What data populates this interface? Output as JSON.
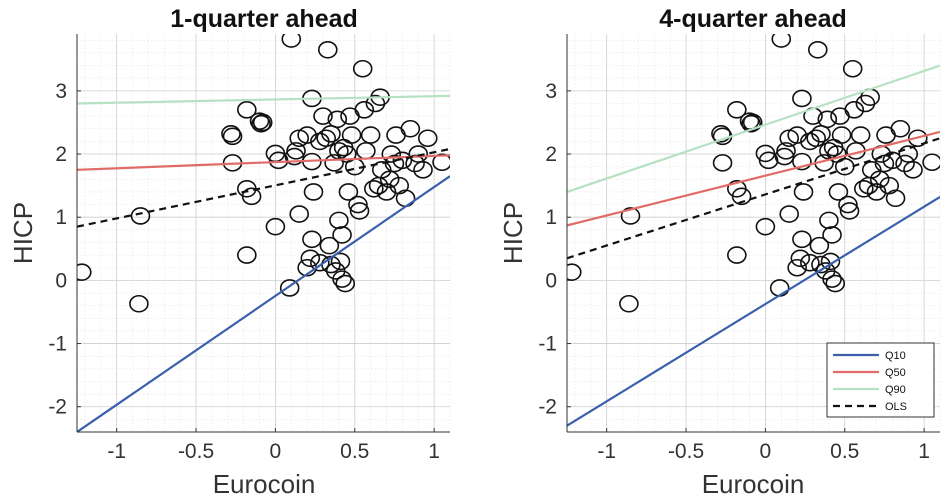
{
  "chart_data": [
    {
      "type": "scatter",
      "title": "1-quarter ahead",
      "xlabel": "Eurocoin",
      "ylabel": "HICP",
      "xlim": [
        -1.25,
        1.1
      ],
      "ylim": [
        -2.4,
        3.9
      ],
      "xticks": [
        -1,
        -0.5,
        0,
        0.5,
        1
      ],
      "xtick_labels": [
        "-1",
        "-0.5",
        "0",
        "0.5",
        "1"
      ],
      "yticks": [
        -2,
        -1,
        0,
        1,
        2,
        3
      ],
      "ytick_labels": [
        "-2",
        "-1",
        "0",
        "1",
        "2",
        "3"
      ],
      "grid": true,
      "legend": null,
      "points": [
        [
          -1.22,
          0.13
        ],
        [
          -0.85,
          1.02
        ],
        [
          -0.86,
          -0.37
        ],
        [
          -0.28,
          2.32
        ],
        [
          -0.27,
          2.28
        ],
        [
          -0.27,
          1.86
        ],
        [
          -0.18,
          2.7
        ],
        [
          -0.18,
          1.45
        ],
        [
          -0.18,
          0.4
        ],
        [
          -0.15,
          1.33
        ],
        [
          -0.1,
          2.52
        ],
        [
          -0.09,
          2.48
        ],
        [
          -0.08,
          2.5
        ],
        [
          0.0,
          2.01
        ],
        [
          0.0,
          0.85
        ],
        [
          0.02,
          1.9
        ],
        [
          0.09,
          -0.12
        ],
        [
          0.1,
          3.82
        ],
        [
          0.12,
          1.96
        ],
        [
          0.13,
          2.05
        ],
        [
          0.15,
          2.25
        ],
        [
          0.15,
          1.05
        ],
        [
          0.2,
          2.3
        ],
        [
          0.2,
          0.2
        ],
        [
          0.22,
          0.35
        ],
        [
          0.23,
          2.88
        ],
        [
          0.23,
          1.88
        ],
        [
          0.23,
          0.65
        ],
        [
          0.24,
          1.4
        ],
        [
          0.28,
          0.28
        ],
        [
          0.28,
          2.2
        ],
        [
          0.3,
          2.6
        ],
        [
          0.32,
          2.25
        ],
        [
          0.33,
          3.65
        ],
        [
          0.34,
          0.55
        ],
        [
          0.35,
          2.32
        ],
        [
          0.35,
          0.25
        ],
        [
          0.37,
          1.86
        ],
        [
          0.38,
          0.15
        ],
        [
          0.39,
          2.55
        ],
        [
          0.4,
          2.05
        ],
        [
          0.4,
          0.95
        ],
        [
          0.41,
          0.3
        ],
        [
          0.42,
          0.02
        ],
        [
          0.42,
          0.72
        ],
        [
          0.43,
          2.1
        ],
        [
          0.44,
          -0.05
        ],
        [
          0.45,
          2.0
        ],
        [
          0.46,
          1.4
        ],
        [
          0.47,
          2.6
        ],
        [
          0.48,
          2.3
        ],
        [
          0.5,
          1.8
        ],
        [
          0.52,
          1.2
        ],
        [
          0.53,
          1.1
        ],
        [
          0.55,
          3.35
        ],
        [
          0.56,
          2.7
        ],
        [
          0.57,
          2.05
        ],
        [
          0.6,
          2.3
        ],
        [
          0.62,
          1.45
        ],
        [
          0.63,
          2.8
        ],
        [
          0.65,
          1.5
        ],
        [
          0.66,
          2.9
        ],
        [
          0.67,
          1.75
        ],
        [
          0.7,
          1.4
        ],
        [
          0.72,
          1.6
        ],
        [
          0.73,
          2.0
        ],
        [
          0.75,
          1.85
        ],
        [
          0.76,
          2.3
        ],
        [
          0.78,
          1.5
        ],
        [
          0.8,
          1.9
        ],
        [
          0.82,
          1.3
        ],
        [
          0.85,
          2.4
        ],
        [
          0.88,
          1.85
        ],
        [
          0.9,
          2.0
        ],
        [
          0.93,
          1.75
        ],
        [
          0.96,
          2.25
        ],
        [
          1.05,
          1.87
        ]
      ],
      "lines": [
        {
          "name": "Q10",
          "color": "#3a5fac",
          "dash": false,
          "x": [
            -1.25,
            1.1
          ],
          "y": [
            -2.4,
            1.65
          ]
        },
        {
          "name": "Q50",
          "color": "#e06b68",
          "dash": false,
          "x": [
            -1.25,
            1.1
          ],
          "y": [
            1.75,
            1.98
          ]
        },
        {
          "name": "Q90",
          "color": "#b6e2c3",
          "dash": false,
          "x": [
            -1.25,
            1.1
          ],
          "y": [
            2.8,
            2.92
          ]
        },
        {
          "name": "OLS",
          "color": "#111111",
          "dash": true,
          "x": [
            -1.25,
            1.1
          ],
          "y": [
            0.85,
            2.08
          ]
        }
      ]
    },
    {
      "type": "scatter",
      "title": "4-quarter ahead",
      "xlabel": "Eurocoin",
      "ylabel": "HICP",
      "xlim": [
        -1.25,
        1.1
      ],
      "ylim": [
        -2.4,
        3.9
      ],
      "xticks": [
        -1,
        -0.5,
        0,
        0.5,
        1
      ],
      "xtick_labels": [
        "-1",
        "-0.5",
        "0",
        "0.5",
        "1"
      ],
      "yticks": [
        -2,
        -1,
        0,
        1,
        2,
        3
      ],
      "ytick_labels": [
        "-2",
        "-1",
        "0",
        "1",
        "2",
        "3"
      ],
      "grid": true,
      "legend": {
        "position": "bottom-right",
        "entries": [
          {
            "label": "Q10",
            "color": "#3a5fac",
            "dash": false
          },
          {
            "label": "Q50",
            "color": "#e06b68",
            "dash": false
          },
          {
            "label": "Q90",
            "color": "#b6e2c3",
            "dash": false
          },
          {
            "label": "OLS",
            "color": "#111111",
            "dash": true
          }
        ]
      },
      "points": [
        [
          -1.22,
          0.13
        ],
        [
          -0.85,
          1.02
        ],
        [
          -0.86,
          -0.37
        ],
        [
          -0.28,
          2.32
        ],
        [
          -0.27,
          2.28
        ],
        [
          -0.27,
          1.86
        ],
        [
          -0.18,
          2.7
        ],
        [
          -0.18,
          1.45
        ],
        [
          -0.18,
          0.4
        ],
        [
          -0.15,
          1.33
        ],
        [
          -0.1,
          2.52
        ],
        [
          -0.09,
          2.48
        ],
        [
          -0.08,
          2.5
        ],
        [
          0.0,
          2.01
        ],
        [
          0.0,
          0.85
        ],
        [
          0.02,
          1.9
        ],
        [
          0.09,
          -0.12
        ],
        [
          0.1,
          3.82
        ],
        [
          0.12,
          1.96
        ],
        [
          0.13,
          2.05
        ],
        [
          0.15,
          2.25
        ],
        [
          0.15,
          1.05
        ],
        [
          0.2,
          2.3
        ],
        [
          0.2,
          0.2
        ],
        [
          0.22,
          0.35
        ],
        [
          0.23,
          2.88
        ],
        [
          0.23,
          1.88
        ],
        [
          0.23,
          0.65
        ],
        [
          0.24,
          1.4
        ],
        [
          0.28,
          0.28
        ],
        [
          0.28,
          2.2
        ],
        [
          0.3,
          2.6
        ],
        [
          0.32,
          2.25
        ],
        [
          0.33,
          3.65
        ],
        [
          0.34,
          0.55
        ],
        [
          0.35,
          2.32
        ],
        [
          0.35,
          0.25
        ],
        [
          0.37,
          1.86
        ],
        [
          0.38,
          0.15
        ],
        [
          0.39,
          2.55
        ],
        [
          0.4,
          2.05
        ],
        [
          0.4,
          0.95
        ],
        [
          0.41,
          0.3
        ],
        [
          0.42,
          0.02
        ],
        [
          0.42,
          0.72
        ],
        [
          0.43,
          2.1
        ],
        [
          0.44,
          -0.05
        ],
        [
          0.45,
          2.0
        ],
        [
          0.46,
          1.4
        ],
        [
          0.47,
          2.6
        ],
        [
          0.48,
          2.3
        ],
        [
          0.5,
          1.8
        ],
        [
          0.52,
          1.2
        ],
        [
          0.53,
          1.1
        ],
        [
          0.55,
          3.35
        ],
        [
          0.56,
          2.7
        ],
        [
          0.57,
          2.05
        ],
        [
          0.6,
          2.3
        ],
        [
          0.62,
          1.45
        ],
        [
          0.63,
          2.8
        ],
        [
          0.65,
          1.5
        ],
        [
          0.66,
          2.9
        ],
        [
          0.67,
          1.75
        ],
        [
          0.7,
          1.4
        ],
        [
          0.72,
          1.6
        ],
        [
          0.73,
          2.0
        ],
        [
          0.75,
          1.85
        ],
        [
          0.76,
          2.3
        ],
        [
          0.78,
          1.5
        ],
        [
          0.8,
          1.9
        ],
        [
          0.82,
          1.3
        ],
        [
          0.85,
          2.4
        ],
        [
          0.88,
          1.85
        ],
        [
          0.9,
          2.0
        ],
        [
          0.93,
          1.75
        ],
        [
          0.96,
          2.25
        ],
        [
          1.05,
          1.87
        ]
      ],
      "lines": [
        {
          "name": "Q10",
          "color": "#3a5fac",
          "dash": false,
          "x": [
            -1.25,
            1.1
          ],
          "y": [
            -2.3,
            1.32
          ]
        },
        {
          "name": "Q50",
          "color": "#e06b68",
          "dash": false,
          "x": [
            -1.25,
            1.1
          ],
          "y": [
            0.87,
            2.35
          ]
        },
        {
          "name": "Q90",
          "color": "#b6e2c3",
          "dash": false,
          "x": [
            -1.25,
            1.1
          ],
          "y": [
            1.4,
            3.4
          ]
        },
        {
          "name": "OLS",
          "color": "#111111",
          "dash": true,
          "x": [
            -1.25,
            1.1
          ],
          "y": [
            0.35,
            2.25
          ]
        }
      ]
    }
  ]
}
